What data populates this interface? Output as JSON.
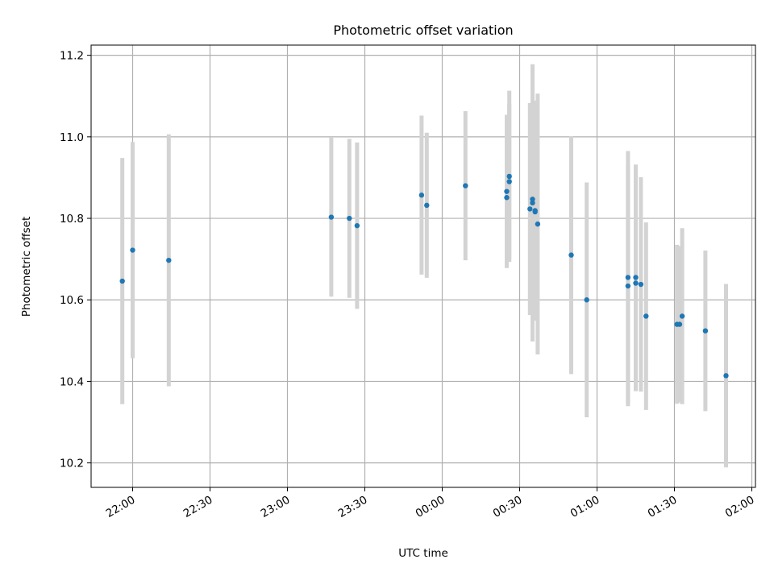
{
  "chart_data": {
    "type": "scatter",
    "title": "Photometric offset variation",
    "xlabel": "UTC time",
    "ylabel": "Photometric offset",
    "grid": true,
    "x_axis": {
      "scale": "time",
      "ticks": [
        "22:00",
        "22:30",
        "23:00",
        "23:30",
        "00:00",
        "00:30",
        "01:00",
        "01:30",
        "02:00"
      ]
    },
    "y_axis": {
      "ylim": [
        10.14,
        11.225
      ],
      "ticks": [
        "10.2",
        "10.4",
        "10.6",
        "10.8",
        "11.0",
        "11.2"
      ]
    },
    "colors": {
      "marker": "#1f77b4",
      "errorbar": "#d3d3d3"
    },
    "series": [
      {
        "points": [
          {
            "x": "21:56",
            "y": 10.646,
            "err": 0.302
          },
          {
            "x": "22:00",
            "y": 10.722,
            "err": 0.265
          },
          {
            "x": "22:14",
            "y": 10.697,
            "err": 0.309
          },
          {
            "x": "23:17",
            "y": 10.803,
            "err": 0.195
          },
          {
            "x": "23:24",
            "y": 10.8,
            "err": 0.195
          },
          {
            "x": "23:27",
            "y": 10.782,
            "err": 0.204
          },
          {
            "x": "23:52",
            "y": 10.857,
            "err": 0.195
          },
          {
            "x": "23:54",
            "y": 10.832,
            "err": 0.178
          },
          {
            "x": "00:09",
            "y": 10.88,
            "err": 0.183
          },
          {
            "x": "00:25",
            "y": 10.866,
            "err": 0.188
          },
          {
            "x": "00:25",
            "y": 10.851,
            "err": 0.17
          },
          {
            "x": "00:26",
            "y": 10.89,
            "err": 0.19
          },
          {
            "x": "00:26",
            "y": 10.903,
            "err": 0.21
          },
          {
            "x": "00:34",
            "y": 10.823,
            "err": 0.26
          },
          {
            "x": "00:35",
            "y": 10.838,
            "err": 0.34
          },
          {
            "x": "00:35",
            "y": 10.847,
            "err": 0.25
          },
          {
            "x": "00:36",
            "y": 10.819,
            "err": 0.27
          },
          {
            "x": "00:36",
            "y": 10.816,
            "err": 0.2
          },
          {
            "x": "00:37",
            "y": 10.786,
            "err": 0.32
          },
          {
            "x": "00:50",
            "y": 10.71,
            "err": 0.292
          },
          {
            "x": "00:56",
            "y": 10.6,
            "err": 0.288
          },
          {
            "x": "01:12",
            "y": 10.634,
            "err": 0.295
          },
          {
            "x": "01:12",
            "y": 10.655,
            "err": 0.31
          },
          {
            "x": "01:15",
            "y": 10.655,
            "err": 0.277
          },
          {
            "x": "01:15",
            "y": 10.641,
            "err": 0.265
          },
          {
            "x": "01:17",
            "y": 10.638,
            "err": 0.263
          },
          {
            "x": "01:19",
            "y": 10.56,
            "err": 0.23
          },
          {
            "x": "01:31",
            "y": 10.54,
            "err": 0.195
          },
          {
            "x": "01:32",
            "y": 10.54,
            "err": 0.192
          },
          {
            "x": "01:33",
            "y": 10.56,
            "err": 0.216
          },
          {
            "x": "01:42",
            "y": 10.524,
            "err": 0.197
          },
          {
            "x": "01:50",
            "y": 10.414,
            "err": 0.225
          }
        ]
      }
    ]
  }
}
